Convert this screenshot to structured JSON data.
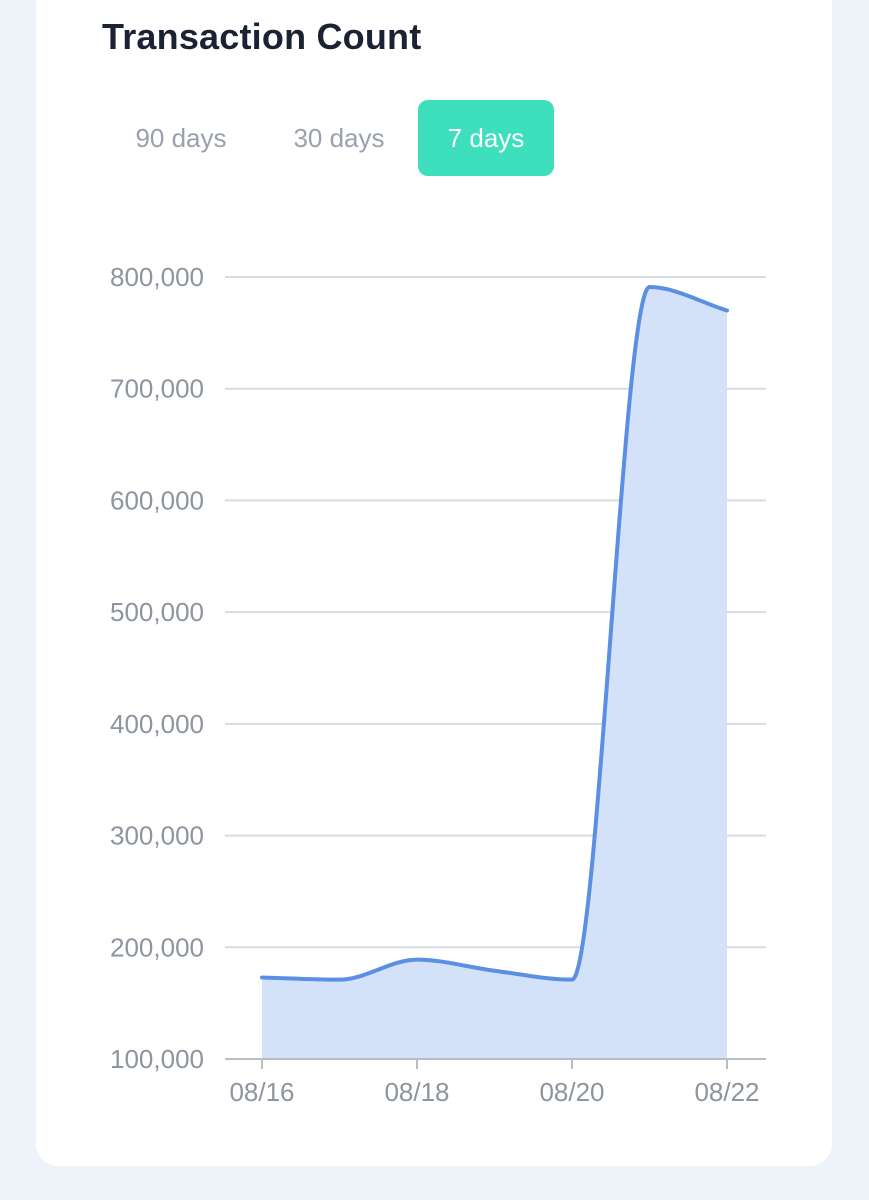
{
  "card": {
    "title": "Transaction Count",
    "tabs": [
      {
        "label": "90 days",
        "active": false
      },
      {
        "label": "30 days",
        "active": false
      },
      {
        "label": "7 days",
        "active": true
      }
    ]
  },
  "colors": {
    "line": "#5b8fe3",
    "fill": "#d3e2f8",
    "grid": "#d7dbe3",
    "tab_active": "#3ddfbd",
    "title": "#1b2233",
    "tick": "#8e959e"
  },
  "chart_data": {
    "type": "area",
    "title": "",
    "xlabel": "",
    "ylabel": "",
    "x": [
      "08/16",
      "08/17",
      "08/18",
      "08/19",
      "08/20",
      "08/21",
      "08/22"
    ],
    "series": [
      {
        "values": [
          173000,
          171000,
          189000,
          179000,
          171000,
          791000,
          770000
        ]
      }
    ],
    "x_ticks": [
      "08/16",
      "08/18",
      "08/20",
      "08/22"
    ],
    "y_ticks": [
      "100,000",
      "200,000",
      "300,000",
      "400,000",
      "500,000",
      "600,000",
      "700,000",
      "800,000"
    ],
    "ylim": [
      100000,
      800000
    ],
    "grid": true,
    "legend": "none"
  }
}
